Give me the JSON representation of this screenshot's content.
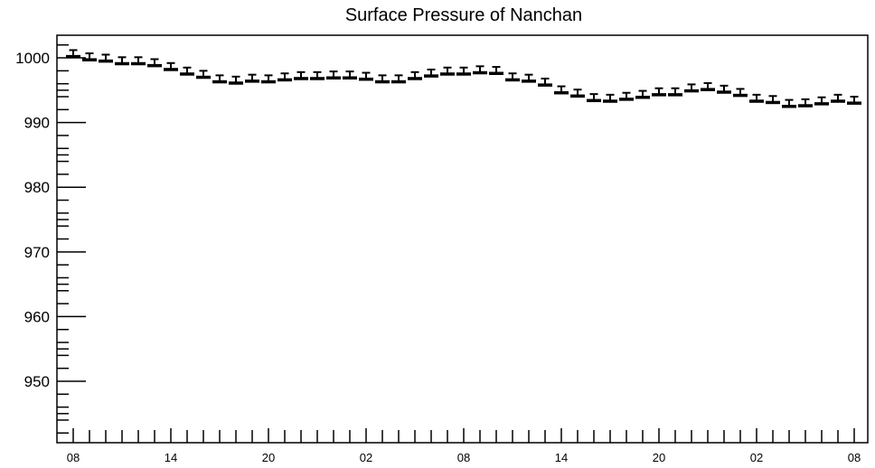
{
  "chart_data": {
    "type": "scatter",
    "title": "Surface Pressure of Nanchan",
    "xlabel": "",
    "ylabel": "",
    "ylim": [
      940.5,
      1003.5
    ],
    "y_ticks": [
      "1000",
      "990",
      "980",
      "970",
      "960",
      "950"
    ],
    "y_tick_values": [
      1000,
      990,
      980,
      970,
      960,
      950
    ],
    "x_tick_labels": [
      "08",
      "14",
      "20",
      "02",
      "08",
      "14",
      "20",
      "02",
      "08"
    ],
    "x_tick_index": [
      0,
      6,
      12,
      18,
      24,
      30,
      36,
      42,
      48
    ],
    "grid": false,
    "legend": "none",
    "error": 1.0,
    "series": [
      {
        "values": [
          1000.2,
          999.7,
          999.5,
          999.1,
          999.1,
          998.8,
          998.2,
          997.5,
          997.0,
          996.3,
          996.1,
          996.4,
          996.3,
          996.6,
          996.8,
          996.8,
          996.9,
          996.9,
          996.7,
          996.3,
          996.3,
          996.8,
          997.2,
          997.5,
          997.5,
          997.7,
          997.6,
          996.6,
          996.4,
          995.8,
          994.6,
          994.1,
          993.4,
          993.3,
          993.6,
          993.9,
          994.3,
          994.3,
          994.9,
          995.1,
          994.7,
          994.2,
          993.3,
          993.1,
          992.5,
          992.6,
          992.9,
          993.3,
          993.0
        ]
      }
    ]
  }
}
